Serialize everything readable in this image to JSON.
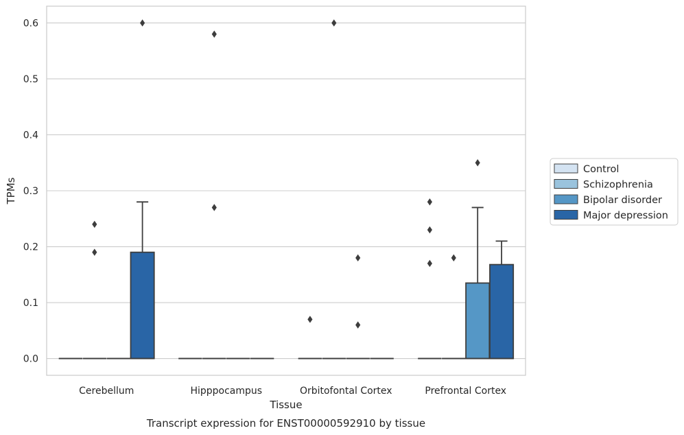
{
  "chart_data": {
    "type": "box",
    "title": "Transcript expression for ENST00000592910 by tissue",
    "xlabel": "Tissue",
    "ylabel": "TPMs",
    "categories": [
      "Cerebellum",
      "Hipppocampus",
      "Orbitofontal Cortex",
      "Prefrontal Cortex"
    ],
    "ylim": [
      -0.03,
      0.63
    ],
    "yticks": [
      0.0,
      0.1,
      0.2,
      0.3,
      0.4,
      0.5,
      0.6
    ],
    "ytick_labels": [
      "0.0",
      "0.1",
      "0.2",
      "0.3",
      "0.4",
      "0.5",
      "0.6"
    ],
    "grid": true,
    "legend_position": "right",
    "series": [
      {
        "name": "Control",
        "color": "#d4e3f2",
        "boxes": [
          {
            "q1": 0,
            "median": 0,
            "q3": 0,
            "whisker_low": 0,
            "whisker_high": 0,
            "outliers": []
          },
          {
            "q1": 0,
            "median": 0,
            "q3": 0,
            "whisker_low": 0,
            "whisker_high": 0,
            "outliers": []
          },
          {
            "q1": 0,
            "median": 0,
            "q3": 0,
            "whisker_low": 0,
            "whisker_high": 0,
            "outliers": [
              0.07
            ]
          },
          {
            "q1": 0,
            "median": 0,
            "q3": 0,
            "whisker_low": 0,
            "whisker_high": 0,
            "outliers": [
              0.28,
              0.23,
              0.17
            ]
          }
        ]
      },
      {
        "name": "Schizophrenia",
        "color": "#9ac3dd",
        "boxes": [
          {
            "q1": 0,
            "median": 0,
            "q3": 0,
            "whisker_low": 0,
            "whisker_high": 0,
            "outliers": [
              0.24,
              0.19
            ]
          },
          {
            "q1": 0,
            "median": 0,
            "q3": 0,
            "whisker_low": 0,
            "whisker_high": 0,
            "outliers": [
              0.58,
              0.27
            ]
          },
          {
            "q1": 0,
            "median": 0,
            "q3": 0,
            "whisker_low": 0,
            "whisker_high": 0,
            "outliers": [
              0.6
            ]
          },
          {
            "q1": 0,
            "median": 0,
            "q3": 0,
            "whisker_low": 0,
            "whisker_high": 0,
            "outliers": [
              0.18
            ]
          }
        ]
      },
      {
        "name": "Bipolar disorder",
        "color": "#5597c6",
        "boxes": [
          {
            "q1": 0,
            "median": 0,
            "q3": 0,
            "whisker_low": 0,
            "whisker_high": 0,
            "outliers": []
          },
          {
            "q1": 0,
            "median": 0,
            "q3": 0,
            "whisker_low": 0,
            "whisker_high": 0,
            "outliers": []
          },
          {
            "q1": 0,
            "median": 0,
            "q3": 0,
            "whisker_low": 0,
            "whisker_high": 0,
            "outliers": [
              0.18,
              0.06
            ]
          },
          {
            "q1": 0,
            "median": 0,
            "q3": 0.135,
            "whisker_low": 0,
            "whisker_high": 0.27,
            "outliers": [
              0.35
            ]
          }
        ]
      },
      {
        "name": "Major depression",
        "color": "#2965a6",
        "boxes": [
          {
            "q1": 0,
            "median": 0,
            "q3": 0.19,
            "whisker_low": 0,
            "whisker_high": 0.28,
            "outliers": [
              0.6
            ]
          },
          {
            "q1": 0,
            "median": 0,
            "q3": 0,
            "whisker_low": 0,
            "whisker_high": 0,
            "outliers": []
          },
          {
            "q1": 0,
            "median": 0,
            "q3": 0,
            "whisker_low": 0,
            "whisker_high": 0,
            "outliers": []
          },
          {
            "q1": 0,
            "median": 0,
            "q3": 0.168,
            "whisker_low": 0,
            "whisker_high": 0.21,
            "outliers": []
          }
        ]
      }
    ]
  }
}
